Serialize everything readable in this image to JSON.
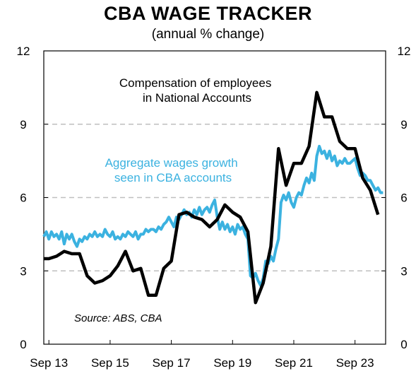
{
  "chart_data": {
    "type": "line",
    "title": "CBA WAGE TRACKER",
    "subtitle": "(annual % change)",
    "xlabel": "",
    "ylabel": "",
    "x_range": [
      "2013-07",
      "2024-09"
    ],
    "x_tick_labels": [
      "Sep 13",
      "Sep 15",
      "Sep 17",
      "Sep 19",
      "Sep 21",
      "Sep 23"
    ],
    "x_tick_dates": [
      "2013-09",
      "2015-09",
      "2017-09",
      "2019-09",
      "2021-09",
      "2023-09"
    ],
    "ylim": [
      0,
      12
    ],
    "y_ticks": [
      0,
      3,
      6,
      9,
      12
    ],
    "gridlines": [
      3,
      6,
      9
    ],
    "grid": "horizontal dashed",
    "annotations": [
      "Source: ABS, CBA"
    ],
    "series": [
      {
        "name": "Compensation of employees in National Accounts",
        "label_lines": [
          "Compensation of employees",
          "in National Accounts"
        ],
        "color": "#000000",
        "points": [
          [
            "2013-07",
            3.5
          ],
          [
            "2013-09",
            3.5
          ],
          [
            "2013-12",
            3.6
          ],
          [
            "2014-03",
            3.8
          ],
          [
            "2014-06",
            3.7
          ],
          [
            "2014-09",
            3.7
          ],
          [
            "2014-12",
            2.8
          ],
          [
            "2015-03",
            2.5
          ],
          [
            "2015-06",
            2.6
          ],
          [
            "2015-09",
            2.8
          ],
          [
            "2015-12",
            3.2
          ],
          [
            "2016-03",
            3.8
          ],
          [
            "2016-06",
            3.0
          ],
          [
            "2016-09",
            3.1
          ],
          [
            "2016-12",
            2.0
          ],
          [
            "2017-03",
            2.0
          ],
          [
            "2017-06",
            3.1
          ],
          [
            "2017-09",
            3.4
          ],
          [
            "2017-12",
            5.3
          ],
          [
            "2018-03",
            5.4
          ],
          [
            "2018-06",
            5.2
          ],
          [
            "2018-09",
            5.1
          ],
          [
            "2018-12",
            4.8
          ],
          [
            "2019-03",
            5.1
          ],
          [
            "2019-06",
            5.7
          ],
          [
            "2019-09",
            5.4
          ],
          [
            "2019-12",
            5.2
          ],
          [
            "2020-03",
            4.6
          ],
          [
            "2020-06",
            1.7
          ],
          [
            "2020-09",
            2.5
          ],
          [
            "2020-12",
            4.0
          ],
          [
            "2021-03",
            8.0
          ],
          [
            "2021-06",
            6.5
          ],
          [
            "2021-09",
            7.4
          ],
          [
            "2021-12",
            7.4
          ],
          [
            "2022-03",
            8.1
          ],
          [
            "2022-06",
            10.3
          ],
          [
            "2022-09",
            9.3
          ],
          [
            "2022-12",
            9.3
          ],
          [
            "2023-03",
            8.3
          ],
          [
            "2023-06",
            8.0
          ],
          [
            "2023-09",
            8.0
          ],
          [
            "2023-12",
            6.8
          ],
          [
            "2024-03",
            6.3
          ],
          [
            "2024-06",
            5.3
          ]
        ]
      },
      {
        "name": "Aggregate wages growth seen in CBA accounts",
        "label_lines": [
          "Aggregate wages growth",
          "seen in CBA accounts"
        ],
        "color": "#3bb2e0",
        "points": [
          [
            "2013-07",
            4.4
          ],
          [
            "2013-08",
            4.6
          ],
          [
            "2013-09",
            4.3
          ],
          [
            "2013-10",
            4.6
          ],
          [
            "2013-11",
            4.4
          ],
          [
            "2013-12",
            4.5
          ],
          [
            "2014-01",
            4.3
          ],
          [
            "2014-02",
            4.6
          ],
          [
            "2014-03",
            4.1
          ],
          [
            "2014-04",
            4.5
          ],
          [
            "2014-05",
            4.3
          ],
          [
            "2014-06",
            4.5
          ],
          [
            "2014-07",
            4.2
          ],
          [
            "2014-08",
            4.0
          ],
          [
            "2014-09",
            4.3
          ],
          [
            "2014-10",
            4.2
          ],
          [
            "2014-11",
            4.4
          ],
          [
            "2014-12",
            4.3
          ],
          [
            "2015-01",
            4.5
          ],
          [
            "2015-02",
            4.4
          ],
          [
            "2015-03",
            4.6
          ],
          [
            "2015-04",
            4.4
          ],
          [
            "2015-05",
            4.5
          ],
          [
            "2015-06",
            4.4
          ],
          [
            "2015-07",
            4.7
          ],
          [
            "2015-08",
            4.5
          ],
          [
            "2015-09",
            4.4
          ],
          [
            "2015-10",
            4.6
          ],
          [
            "2015-11",
            4.3
          ],
          [
            "2015-12",
            4.4
          ],
          [
            "2016-01",
            4.3
          ],
          [
            "2016-02",
            4.5
          ],
          [
            "2016-03",
            4.4
          ],
          [
            "2016-04",
            4.6
          ],
          [
            "2016-05",
            4.5
          ],
          [
            "2016-06",
            4.4
          ],
          [
            "2016-07",
            4.6
          ],
          [
            "2016-08",
            4.3
          ],
          [
            "2016-09",
            4.5
          ],
          [
            "2016-10",
            4.5
          ],
          [
            "2016-11",
            4.7
          ],
          [
            "2016-12",
            4.6
          ],
          [
            "2017-01",
            4.7
          ],
          [
            "2017-02",
            4.7
          ],
          [
            "2017-03",
            4.6
          ],
          [
            "2017-04",
            4.8
          ],
          [
            "2017-05",
            4.7
          ],
          [
            "2017-06",
            4.9
          ],
          [
            "2017-07",
            5.0
          ],
          [
            "2017-08",
            5.2
          ],
          [
            "2017-09",
            5.0
          ],
          [
            "2017-10",
            4.8
          ],
          [
            "2017-11",
            5.2
          ],
          [
            "2017-12",
            5.1
          ],
          [
            "2018-01",
            5.3
          ],
          [
            "2018-02",
            5.5
          ],
          [
            "2018-03",
            5.3
          ],
          [
            "2018-04",
            5.4
          ],
          [
            "2018-05",
            5.2
          ],
          [
            "2018-06",
            5.5
          ],
          [
            "2018-07",
            5.3
          ],
          [
            "2018-08",
            5.6
          ],
          [
            "2018-09",
            5.3
          ],
          [
            "2018-10",
            5.5
          ],
          [
            "2018-11",
            5.6
          ],
          [
            "2018-12",
            5.4
          ],
          [
            "2019-01",
            5.7
          ],
          [
            "2019-02",
            5.9
          ],
          [
            "2019-03",
            5.2
          ],
          [
            "2019-04",
            4.7
          ],
          [
            "2019-05",
            5.0
          ],
          [
            "2019-06",
            4.7
          ],
          [
            "2019-07",
            4.9
          ],
          [
            "2019-08",
            4.6
          ],
          [
            "2019-09",
            4.8
          ],
          [
            "2019-10",
            4.5
          ],
          [
            "2019-11",
            4.9
          ],
          [
            "2019-12",
            4.7
          ],
          [
            "2020-01",
            4.8
          ],
          [
            "2020-02",
            4.5
          ],
          [
            "2020-03",
            4.3
          ],
          [
            "2020-04",
            2.8
          ],
          [
            "2020-05",
            2.7
          ],
          [
            "2020-06",
            2.9
          ],
          [
            "2020-07",
            2.6
          ],
          [
            "2020-08",
            2.4
          ],
          [
            "2020-09",
            2.7
          ],
          [
            "2020-10",
            3.4
          ],
          [
            "2020-11",
            3.3
          ],
          [
            "2020-12",
            3.6
          ],
          [
            "2021-01",
            3.4
          ],
          [
            "2021-02",
            3.9
          ],
          [
            "2021-03",
            4.3
          ],
          [
            "2021-04",
            5.8
          ],
          [
            "2021-05",
            6.1
          ],
          [
            "2021-06",
            5.9
          ],
          [
            "2021-07",
            6.2
          ],
          [
            "2021-08",
            5.8
          ],
          [
            "2021-09",
            5.6
          ],
          [
            "2021-10",
            6.0
          ],
          [
            "2021-11",
            6.2
          ],
          [
            "2021-12",
            6.1
          ],
          [
            "2022-01",
            6.5
          ],
          [
            "2022-02",
            6.8
          ],
          [
            "2022-03",
            6.6
          ],
          [
            "2022-04",
            7.0
          ],
          [
            "2022-05",
            6.7
          ],
          [
            "2022-06",
            7.7
          ],
          [
            "2022-07",
            8.1
          ],
          [
            "2022-08",
            7.8
          ],
          [
            "2022-09",
            7.9
          ],
          [
            "2022-10",
            7.6
          ],
          [
            "2022-11",
            7.9
          ],
          [
            "2022-12",
            7.5
          ],
          [
            "2023-01",
            7.7
          ],
          [
            "2023-02",
            7.3
          ],
          [
            "2023-03",
            7.5
          ],
          [
            "2023-04",
            7.4
          ],
          [
            "2023-05",
            7.6
          ],
          [
            "2023-06",
            7.4
          ],
          [
            "2023-07",
            7.4
          ],
          [
            "2023-08",
            7.5
          ],
          [
            "2023-09",
            7.6
          ],
          [
            "2023-10",
            7.2
          ],
          [
            "2023-11",
            6.9
          ],
          [
            "2023-12",
            7.0
          ],
          [
            "2024-01",
            6.9
          ],
          [
            "2024-02",
            6.7
          ],
          [
            "2024-03",
            6.7
          ],
          [
            "2024-04",
            6.5
          ],
          [
            "2024-05",
            6.3
          ],
          [
            "2024-06",
            6.4
          ],
          [
            "2024-07",
            6.2
          ],
          [
            "2024-08",
            6.2
          ]
        ]
      }
    ]
  }
}
